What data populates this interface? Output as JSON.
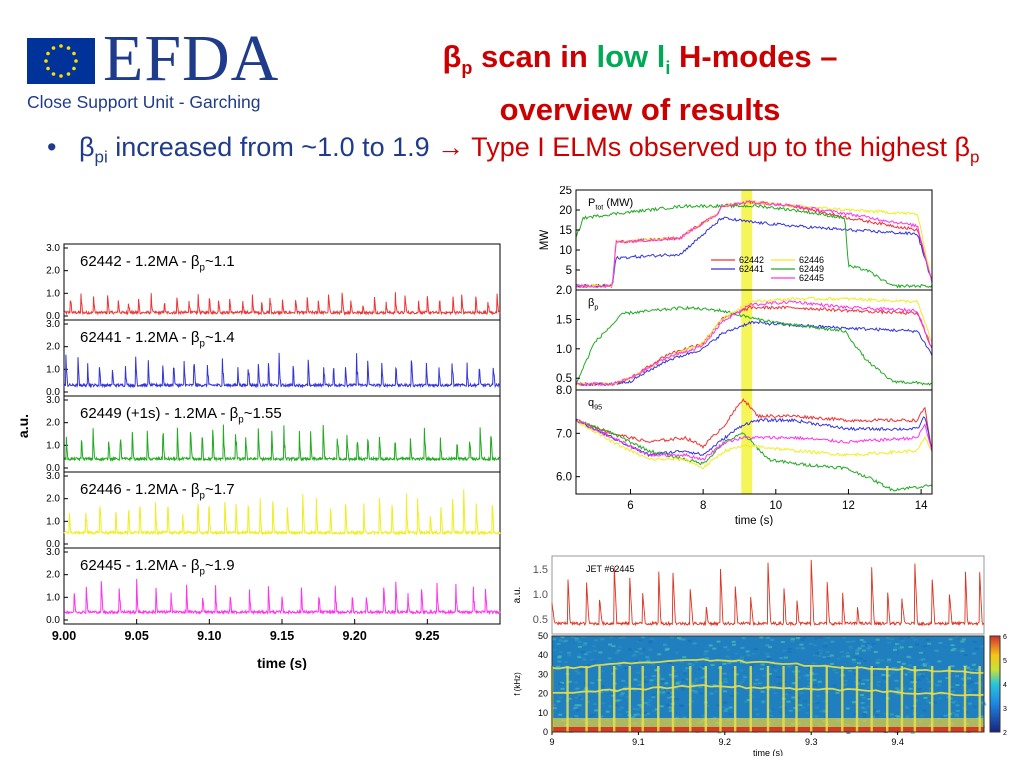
{
  "header": {
    "org": "EFDA",
    "unit": "Close Support Unit - Garching",
    "title_beta": "β",
    "title_beta_sub": "p",
    "title_pre": " scan in ",
    "title_low": "low l",
    "title_low_sub": "i",
    "title_post": " H-modes –",
    "title_line2": "overview of results"
  },
  "bullet": {
    "beta": "β",
    "beta_sub": "pi",
    "text_main": " increased from ~1.0 to 1.9 ",
    "arrow": "→",
    "text_red": " Type I ELMs observed up to the highest ",
    "beta2": "β",
    "beta2_sub": "p"
  },
  "colors": {
    "s62442": "#ee3333",
    "s62441": "#3333dd",
    "s62449": "#22aa22",
    "s62446": "#eeee22",
    "s62445": "#ff33ee",
    "highlight": "#f5f55a",
    "title_red": "#cc0000",
    "title_green": "#00aa55",
    "body_blue": "#1f3c8c"
  },
  "chart_data": [
    {
      "type": "line",
      "id": "elm-traces",
      "xlabel": "time (s)",
      "ylabel": "a.u.",
      "xlim": [
        9.0,
        9.3
      ],
      "x_ticks": [
        "9.00",
        "9.05",
        "9.10",
        "9.15",
        "9.20",
        "9.25"
      ],
      "y_ticks": [
        "0.0",
        "1.0",
        "2.0",
        "3.0"
      ],
      "panels": [
        {
          "label_pre": "62442 - 1.2MA - β",
          "label_sub": "p",
          "label_post": "~1.1",
          "color": "#ee3333",
          "elm_period": 0.0065,
          "elm_amp": 0.6,
          "base": 0.15
        },
        {
          "label_pre": "62441 - 1.2MA - β",
          "label_sub": "p",
          "label_post": "~1.4",
          "color": "#3333dd",
          "elm_period": 0.0072,
          "elm_amp": 1.0,
          "base": 0.3
        },
        {
          "label_pre": "62449 (+1s) - 1.2MA - β",
          "label_sub": "p",
          "label_post": "~1.55",
          "color": "#22aa22",
          "elm_period": 0.0075,
          "elm_amp": 1.1,
          "base": 0.4
        },
        {
          "label_pre": "62446 - 1.2MA - β",
          "label_sub": "p",
          "label_post": "~1.7",
          "color": "#eeee22",
          "elm_period": 0.0085,
          "elm_amp": 1.3,
          "base": 0.5
        },
        {
          "label_pre": "62445 - 1.2MA - β",
          "label_sub": "p",
          "label_post": "~1.9",
          "color": "#ff33ee",
          "elm_period": 0.0095,
          "elm_amp": 1.0,
          "base": 0.35
        }
      ]
    },
    {
      "type": "line",
      "id": "overview",
      "xlabel": "time (s)",
      "xlim": [
        4.5,
        14.3
      ],
      "x_ticks": [
        6,
        8,
        10,
        12,
        14
      ],
      "highlight_x": [
        9.05,
        9.35
      ],
      "legend": [
        "62442",
        "62446",
        "62441",
        "62449",
        "62445"
      ],
      "panels": [
        {
          "label": "P",
          "label_sub": "tot",
          "label_post": " (MW)",
          "ylabel": "MW",
          "ylim": [
            0,
            25
          ],
          "y_ticks": [
            5,
            10,
            15,
            20,
            25
          ],
          "series": [
            {
              "name": "62442",
              "color": "#ee3333",
              "x": [
                4.5,
                5.5,
                5.6,
                7.4,
                7.5,
                8.4,
                8.5,
                9.3,
                10.5,
                12,
                13.9,
                14.3
              ],
              "y": [
                1,
                1,
                12,
                13,
                14,
                19,
                21,
                22,
                21,
                18,
                15,
                2
              ]
            },
            {
              "name": "62441",
              "color": "#3333dd",
              "x": [
                4.5,
                5.5,
                5.6,
                7.4,
                7.5,
                8.4,
                8.5,
                9.3,
                10.5,
                12,
                13.9,
                14.3
              ],
              "y": [
                1,
                1,
                8,
                9,
                10,
                17,
                18,
                17,
                16,
                15,
                14,
                2
              ]
            },
            {
              "name": "62449",
              "color": "#22aa22",
              "x": [
                4.5,
                4.7,
                5.5,
                7.5,
                8.5,
                9.5,
                10.5,
                11.9,
                12.0,
                12.5,
                13.2,
                14.3
              ],
              "y": [
                13,
                18,
                19,
                21,
                21,
                21,
                20,
                18,
                6,
                5,
                1,
                1
              ]
            },
            {
              "name": "62446",
              "color": "#eeee22",
              "x": [
                4.5,
                5.5,
                5.6,
                7.4,
                7.5,
                8.4,
                8.5,
                9.3,
                10.5,
                12,
                13.9,
                14.3
              ],
              "y": [
                1,
                1,
                12,
                13,
                14,
                19,
                21,
                22,
                21,
                20,
                19,
                2
              ]
            },
            {
              "name": "62445",
              "color": "#ff33ee",
              "x": [
                4.5,
                5.5,
                5.6,
                7.4,
                7.5,
                8.4,
                8.5,
                9.3,
                10.5,
                12,
                13.9,
                14.3
              ],
              "y": [
                1,
                1,
                12,
                13,
                14,
                19,
                21,
                22,
                21,
                19,
                16,
                2
              ]
            }
          ]
        },
        {
          "label": "β",
          "label_sub": "p",
          "label_post": "",
          "ylabel": "",
          "ylim": [
            0.3,
            2.0
          ],
          "y_ticks": [
            "0.5",
            "1.0",
            "1.5",
            "2.0"
          ],
          "series": [
            {
              "name": "62442",
              "color": "#ee3333",
              "x": [
                4.5,
                5.5,
                6.0,
                7.0,
                8.0,
                8.5,
                9.3,
                10.5,
                12,
                13.9,
                14.3
              ],
              "y": [
                0.4,
                0.4,
                0.5,
                0.9,
                1.1,
                1.5,
                1.7,
                1.7,
                1.65,
                1.6,
                1.0
              ]
            },
            {
              "name": "62441",
              "color": "#3333dd",
              "x": [
                4.5,
                5.5,
                6.0,
                7.0,
                8.0,
                8.5,
                9.3,
                10.5,
                12,
                13.9,
                14.3
              ],
              "y": [
                0.4,
                0.4,
                0.45,
                0.8,
                1.0,
                1.25,
                1.45,
                1.4,
                1.35,
                1.3,
                0.9
              ]
            },
            {
              "name": "62449",
              "color": "#22aa22",
              "x": [
                4.5,
                5.0,
                5.8,
                7.5,
                8.5,
                9.5,
                10.5,
                11.9,
                12.5,
                13.2,
                14.3
              ],
              "y": [
                0.4,
                1.1,
                1.6,
                1.7,
                1.65,
                1.5,
                1.4,
                1.3,
                0.8,
                0.45,
                0.4
              ]
            },
            {
              "name": "62446",
              "color": "#eeee22",
              "x": [
                4.5,
                5.5,
                6.0,
                7.0,
                8.0,
                8.5,
                9.3,
                10.5,
                12,
                13.9,
                14.3
              ],
              "y": [
                0.4,
                0.4,
                0.5,
                0.85,
                1.1,
                1.5,
                1.8,
                1.85,
                1.85,
                1.8,
                1.1
              ]
            },
            {
              "name": "62445",
              "color": "#ff33ee",
              "x": [
                4.5,
                5.5,
                6.0,
                7.0,
                8.0,
                8.5,
                9.3,
                10.5,
                12,
                13.9,
                14.3
              ],
              "y": [
                0.4,
                0.4,
                0.5,
                0.85,
                1.05,
                1.45,
                1.75,
                1.8,
                1.7,
                1.65,
                1.0
              ]
            }
          ]
        },
        {
          "label": "q",
          "label_sub": "95",
          "label_post": "",
          "ylabel": "",
          "ylim": [
            5.6,
            8.0
          ],
          "y_ticks": [
            "6.0",
            "7.0",
            "8.0"
          ],
          "series": [
            {
              "name": "62442",
              "color": "#ee3333",
              "x": [
                4.5,
                5.5,
                6.5,
                7.5,
                8.0,
                8.6,
                9.1,
                9.5,
                10.5,
                12,
                13.9,
                14.1,
                14.3
              ],
              "y": [
                7.3,
                7.0,
                6.8,
                6.9,
                6.7,
                7.2,
                7.8,
                7.4,
                7.4,
                7.3,
                7.3,
                7.6,
                6.6
              ]
            },
            {
              "name": "62441",
              "color": "#3333dd",
              "x": [
                4.5,
                5.5,
                6.5,
                7.5,
                8.0,
                8.6,
                9.1,
                9.5,
                10.5,
                12,
                13.9,
                14.1,
                14.3
              ],
              "y": [
                7.3,
                6.9,
                6.5,
                6.6,
                6.5,
                6.9,
                7.2,
                7.3,
                7.3,
                7.1,
                7.1,
                7.4,
                6.6
              ]
            },
            {
              "name": "62449",
              "color": "#22aa22",
              "x": [
                4.5,
                5.5,
                6.5,
                7.5,
                8.0,
                8.6,
                9.1,
                9.8,
                10.5,
                11.9,
                12.5,
                13.2,
                14.3
              ],
              "y": [
                7.3,
                7.0,
                6.6,
                6.4,
                6.3,
                6.8,
                7.0,
                6.4,
                6.3,
                6.2,
                6.0,
                5.7,
                5.8
              ]
            },
            {
              "name": "62446",
              "color": "#eeee22",
              "x": [
                4.5,
                5.5,
                6.5,
                7.5,
                8.0,
                8.6,
                9.1,
                9.5,
                10.5,
                12,
                13.9,
                14.1,
                14.3
              ],
              "y": [
                7.3,
                6.8,
                6.4,
                6.4,
                6.2,
                6.6,
                6.7,
                6.7,
                6.6,
                6.5,
                6.6,
                6.9,
                6.6
              ]
            },
            {
              "name": "62445",
              "color": "#ff33ee",
              "x": [
                4.5,
                5.5,
                6.5,
                7.5,
                8.0,
                8.6,
                9.1,
                9.5,
                10.5,
                12,
                13.9,
                14.1,
                14.3
              ],
              "y": [
                7.3,
                6.9,
                6.5,
                6.5,
                6.4,
                6.8,
                6.9,
                6.9,
                6.9,
                6.8,
                6.9,
                7.2,
                6.6
              ]
            }
          ]
        }
      ]
    },
    {
      "type": "heatmap",
      "id": "spectrogram",
      "label": "JET #62445",
      "xlabel": "time (s)",
      "ylabel_top": "a.u.",
      "ylabel": "f (kHz)",
      "xlim": [
        9.0,
        9.5
      ],
      "x_ticks": [
        "9",
        "9.1",
        "9.2",
        "9.3",
        "9.4"
      ],
      "y_ticks_top": [
        "0.5",
        "1.0",
        "1.5"
      ],
      "y_ticks": [
        "0",
        "10",
        "20",
        "30",
        "40",
        "50"
      ],
      "colorbar_ticks": [
        "2",
        "3",
        "4",
        "5",
        "6"
      ],
      "elm_times": [
        9.0,
        9.018,
        9.04,
        9.055,
        9.072,
        9.09,
        9.105,
        9.123,
        9.14,
        9.16,
        9.178,
        9.195,
        9.212,
        9.23,
        9.25,
        9.268,
        9.283,
        9.3,
        9.318,
        9.336,
        9.353,
        9.37,
        9.388,
        9.405,
        9.42,
        9.44,
        9.46,
        9.478,
        9.495
      ]
    }
  ]
}
